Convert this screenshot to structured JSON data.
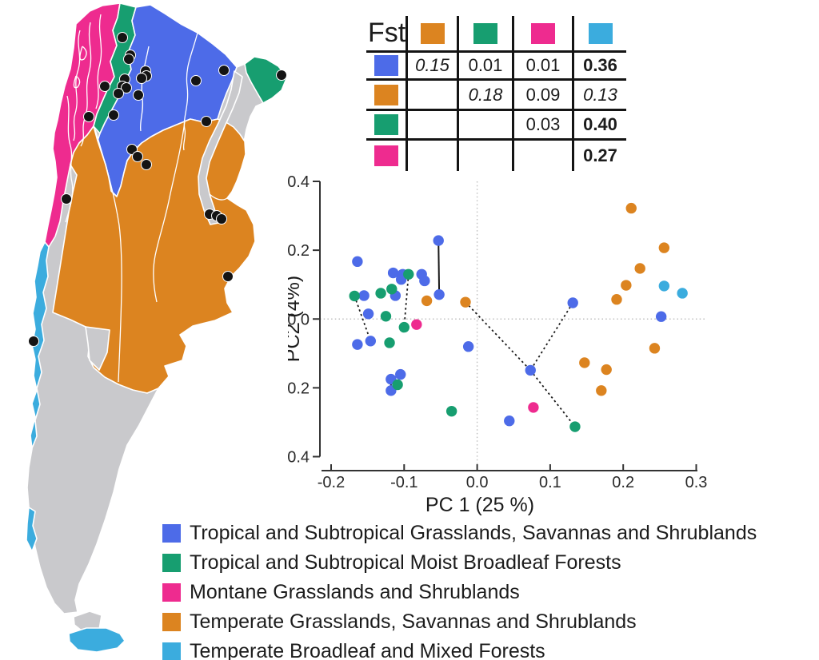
{
  "palette": {
    "blue": "#4D6BE8",
    "green": "#179E70",
    "magenta": "#EE2B8F",
    "orange": "#DC8420",
    "cyan": "#3BACDE",
    "gray": "#C9C9CC",
    "dot": "#141414",
    "line": "#1a1a1a",
    "grid": "#bfbfbf",
    "axis": "#333333"
  },
  "chart_data": [
    {
      "type": "scatter",
      "title": "",
      "xlabel": "PC 1 (25 %)",
      "ylabel": "PC2 (4%)",
      "xlim": [
        -0.2,
        0.3
      ],
      "ylim": [
        -0.4,
        0.4
      ],
      "xticks": [
        "-0.2",
        "-0.1",
        "0.0",
        "0.1",
        "0.2",
        "0.3"
      ],
      "yticks": [
        "0.4",
        "0.2",
        "0.0",
        "-0.2",
        "-0.4"
      ],
      "grid": "dotted zero-lines at x=0 and y=0",
      "legend_position": "none (shared bottom legend)",
      "series": [
        {
          "name": "Tropical and Subtropical Grasslands, Savannas and Shrublands",
          "color": "blue",
          "points": [
            [
              -0.164,
              0.167
            ],
            [
              -0.155,
              0.068
            ],
            [
              -0.149,
              0.015
            ],
            [
              -0.146,
              -0.064
            ],
            [
              -0.164,
              -0.074
            ],
            [
              -0.115,
              0.134
            ],
            [
              -0.102,
              0.13
            ],
            [
              -0.104,
              0.115
            ],
            [
              -0.112,
              0.068
            ],
            [
              -0.076,
              0.13
            ],
            [
              -0.072,
              0.111
            ],
            [
              -0.053,
              0.228
            ],
            [
              -0.052,
              0.071
            ],
            [
              -0.012,
              -0.08
            ],
            [
              -0.105,
              -0.161
            ],
            [
              -0.118,
              -0.175
            ],
            [
              -0.118,
              -0.208
            ],
            [
              0.044,
              -0.296
            ],
            [
              0.073,
              -0.149
            ],
            [
              0.131,
              0.047
            ],
            [
              0.252,
              0.007
            ]
          ]
        },
        {
          "name": "Tropical and Subtropical Moist Broadleaf Forests",
          "color": "green",
          "points": [
            [
              -0.168,
              0.067
            ],
            [
              -0.132,
              0.075
            ],
            [
              -0.117,
              0.087
            ],
            [
              -0.125,
              0.008
            ],
            [
              -0.094,
              0.13
            ],
            [
              -0.1,
              -0.024
            ],
            [
              -0.12,
              -0.069
            ],
            [
              -0.109,
              -0.191
            ],
            [
              -0.035,
              -0.268
            ],
            [
              0.134,
              -0.313
            ]
          ]
        },
        {
          "name": "Montane Grasslands and Shrublands",
          "color": "magenta",
          "points": [
            [
              -0.083,
              -0.016
            ],
            [
              0.077,
              -0.257
            ]
          ]
        },
        {
          "name": "Temperate Grasslands, Savannas and Shrublands",
          "color": "orange",
          "points": [
            [
              -0.069,
              0.053
            ],
            [
              -0.016,
              0.049
            ],
            [
              0.147,
              -0.127
            ],
            [
              0.177,
              -0.147
            ],
            [
              0.17,
              -0.208
            ],
            [
              0.243,
              -0.085
            ],
            [
              0.191,
              0.057
            ],
            [
              0.204,
              0.098
            ],
            [
              0.223,
              0.147
            ],
            [
              0.211,
              0.322
            ],
            [
              0.256,
              0.207
            ]
          ]
        },
        {
          "name": "Temperate Broadleaf and Mixed Forests",
          "color": "cyan",
          "points": [
            [
              0.256,
              0.096
            ],
            [
              0.281,
              0.075
            ]
          ]
        }
      ],
      "connectors": [
        {
          "style": "solid",
          "from": [
            -0.053,
            0.228
          ],
          "to": [
            -0.052,
            0.071
          ]
        },
        {
          "style": "solid",
          "from": [
            -0.118,
            -0.175
          ],
          "to": [
            -0.118,
            -0.208
          ]
        },
        {
          "style": "dashed",
          "from": [
            -0.168,
            0.067
          ],
          "to": [
            -0.146,
            -0.064
          ]
        },
        {
          "style": "dashed",
          "from": [
            -0.094,
            0.13
          ],
          "to": [
            -0.1,
            -0.024
          ]
        },
        {
          "style": "dashed",
          "from": [
            -0.118,
            -0.175
          ],
          "to": [
            -0.105,
            -0.161
          ]
        },
        {
          "style": "dashed",
          "from": [
            -0.016,
            0.049
          ],
          "to": [
            0.073,
            -0.149
          ]
        },
        {
          "style": "dashed",
          "from": [
            0.131,
            0.047
          ],
          "to": [
            0.073,
            -0.149
          ]
        },
        {
          "style": "dashed",
          "from": [
            0.073,
            -0.149
          ],
          "to": [
            0.134,
            -0.313
          ]
        }
      ]
    },
    {
      "type": "table",
      "title": "Fst",
      "column_swatches": [
        "orange",
        "green",
        "magenta",
        "cyan"
      ],
      "row_swatches": [
        "blue",
        "orange",
        "green",
        "magenta"
      ],
      "cells": [
        [
          {
            "v": "0.15",
            "em": "italic"
          },
          {
            "v": "0.01",
            "em": ""
          },
          {
            "v": "0.01",
            "em": ""
          },
          {
            "v": "0.36",
            "em": "bold"
          }
        ],
        [
          {
            "v": "",
            "em": ""
          },
          {
            "v": "0.18",
            "em": "italic"
          },
          {
            "v": "0.09",
            "em": ""
          },
          {
            "v": "0.13",
            "em": "italic"
          }
        ],
        [
          {
            "v": "",
            "em": ""
          },
          {
            "v": "",
            "em": ""
          },
          {
            "v": "0.03",
            "em": ""
          },
          {
            "v": "0.40",
            "em": "bold"
          }
        ],
        [
          {
            "v": "",
            "em": ""
          },
          {
            "v": "",
            "em": ""
          },
          {
            "v": "",
            "em": ""
          },
          {
            "v": "0.27",
            "em": "bold"
          }
        ]
      ]
    }
  ],
  "legend": {
    "items": [
      {
        "color": "blue",
        "label": "Tropical and Subtropical Grasslands, Savannas and Shrublands"
      },
      {
        "color": "green",
        "label": "Tropical and Subtropical Moist Broadleaf Forests"
      },
      {
        "color": "magenta",
        "label": "Montane Grasslands and Shrublands"
      },
      {
        "color": "orange",
        "label": "Temperate Grasslands, Savannas and Shrublands"
      },
      {
        "color": "cyan",
        "label": "Temperate Broadleaf and Mixed Forests"
      }
    ]
  },
  "map": {
    "description": "Argentina colored by ecoregion with black sampling-site dots",
    "region_colors": [
      "magenta",
      "green",
      "blue",
      "orange",
      "cyan",
      "gray"
    ],
    "sites": [
      [
        153,
        47
      ],
      [
        163,
        69
      ],
      [
        161,
        74
      ],
      [
        182,
        89
      ],
      [
        183,
        95
      ],
      [
        177,
        98
      ],
      [
        156,
        99
      ],
      [
        153,
        108
      ],
      [
        131,
        108
      ],
      [
        158,
        110
      ],
      [
        148,
        117
      ],
      [
        173,
        119
      ],
      [
        142,
        144
      ],
      [
        245,
        101
      ],
      [
        280,
        88
      ],
      [
        352,
        94
      ],
      [
        111,
        146
      ],
      [
        258,
        152
      ],
      [
        165,
        187
      ],
      [
        172,
        196
      ],
      [
        183,
        206
      ],
      [
        83,
        249
      ],
      [
        262,
        268
      ],
      [
        271,
        270
      ],
      [
        277,
        274
      ],
      [
        285,
        346
      ],
      [
        42,
        427
      ]
    ]
  }
}
